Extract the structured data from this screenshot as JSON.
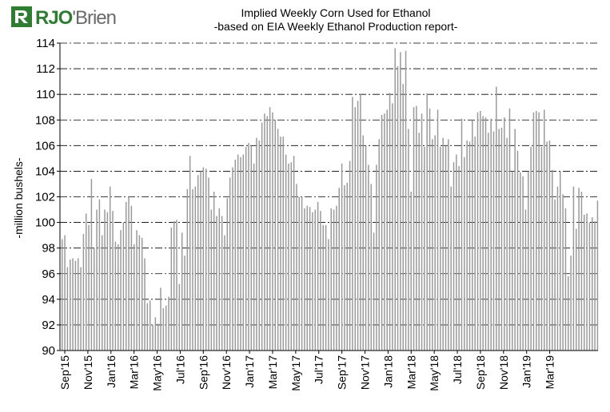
{
  "logo": {
    "text_bold": "RJO",
    "text_light": "'Brien"
  },
  "chart_data": {
    "type": "bar",
    "title": "Implied  Weekly Corn Used for Ethanol",
    "subtitle": "-based on EIA Weekly Ethanol Production report-",
    "ylabel": "-million bushels-",
    "xlabel": "",
    "ylim": [
      90,
      114
    ],
    "ytick_step": 2,
    "grid": true,
    "legend": "none",
    "colors": {
      "bar": "#9a9a9a",
      "grid": "#000000",
      "axis": "#000000"
    },
    "xtick_labels": [
      "Sep'15",
      "Nov'15",
      "Jan'16",
      "Mar'16",
      "May'16",
      "Jul'16",
      "Sep'16",
      "Nov'16",
      "Jan'17",
      "Mar'17",
      "May'17",
      "Jul'17",
      "Sep'17",
      "Nov'17",
      "Jan'18",
      "Mar'18",
      "May'18",
      "Jul'18",
      "Sep'18",
      "Nov'18",
      "Jan'19",
      "Mar'19"
    ],
    "weeks_per_label": 8.67,
    "values": [
      98.7,
      99.0,
      96.5,
      97.1,
      97.2,
      97.0,
      97.2,
      96.5,
      99.1,
      100.7,
      99.8,
      103.4,
      98.0,
      101.0,
      101.8,
      99.0,
      101.0,
      100.8,
      102.8,
      100.9,
      98.5,
      98.3,
      99.4,
      100.0,
      101.6,
      102.0,
      101.3,
      98.3,
      99.4,
      99.0,
      98.8,
      97.2,
      93.7,
      93.9,
      92.0,
      92.6,
      92.1,
      94.9,
      93.3,
      93.5,
      94.2,
      99.6,
      100.1,
      100.2,
      95.2,
      99.2,
      97.4,
      102.6,
      105.2,
      102.6,
      102.8,
      103.7,
      104.0,
      104.3,
      104.2,
      103.5,
      101.0,
      102.4,
      100.5,
      101.1,
      100.5,
      99.0,
      101.9,
      103.5,
      104.3,
      104.9,
      105.3,
      105.1,
      105.3,
      105.9,
      106.2,
      106.0,
      104.6,
      106.6,
      106.4,
      107.8,
      108.5,
      108.3,
      109.0,
      108.6,
      108.0,
      107.3,
      106.7,
      106.7,
      105.3,
      104.6,
      104.7,
      105.2,
      103.0,
      102.0,
      102.0,
      101.1,
      101.3,
      101.2,
      100.8,
      101.0,
      101.6,
      100.9,
      99.8,
      99.8,
      98.7,
      101.1,
      101.0,
      101.3,
      102.7,
      104.6,
      102.9,
      103.1,
      104.8,
      109.8,
      109.0,
      109.5,
      110.0,
      106.8,
      106.0,
      104.5,
      103.0,
      99.2,
      104.5,
      106.5,
      108.4,
      108.5,
      108.8,
      110.1,
      109.3,
      113.6,
      112.2,
      113.3,
      110.8,
      113.4,
      107.3,
      102.4,
      109.0,
      109.1,
      107.0,
      108.5,
      105.9,
      110.1,
      108.9,
      106.5,
      106.8,
      108.8,
      105.9,
      106.6,
      106.0,
      106.5,
      102.8,
      104.7,
      105.3,
      104.4,
      108.1,
      105.1,
      106.4,
      106.3,
      108.0,
      106.7,
      108.6,
      108.7,
      108.3,
      108.2,
      107.0,
      108.1,
      107.1,
      110.6,
      107.3,
      107.4,
      108.2,
      106.6,
      108.9,
      104.0,
      107.3,
      105.6,
      103.9,
      103.6,
      101.0,
      104.0,
      105.9,
      108.6,
      108.7,
      108.6,
      105.9,
      108.8,
      106.3,
      106.4,
      104.1,
      101.8,
      102.8,
      104.0,
      102.2,
      101.1,
      95.8,
      97.4,
      102.8,
      99.5,
      102.7,
      102.4,
      100.6,
      100.7,
      100.0,
      100.4,
      100.1,
      101.7
    ]
  }
}
